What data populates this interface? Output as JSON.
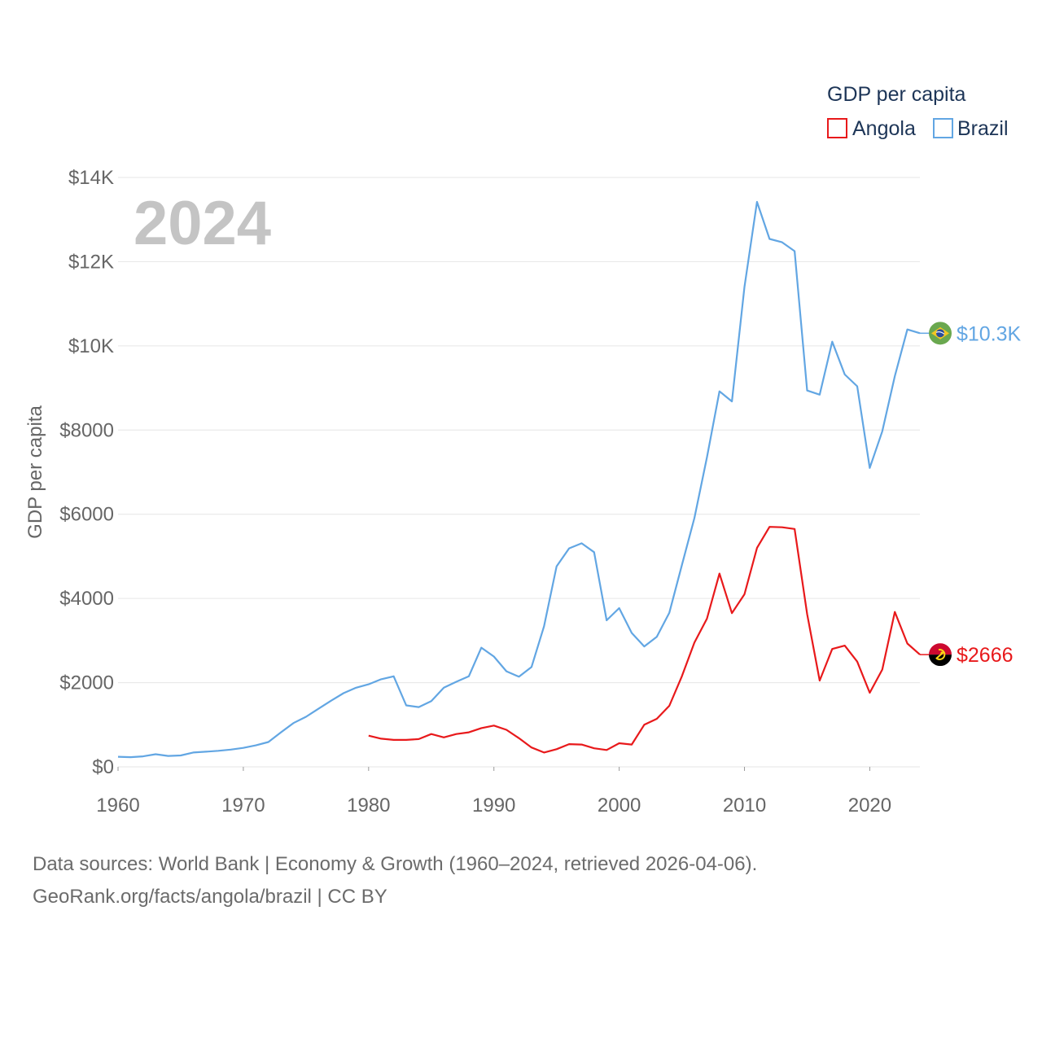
{
  "chart_data": {
    "type": "line",
    "title": "",
    "year_label": "2024",
    "xlabel": "",
    "ylabel": "GDP per capita",
    "xlim": [
      1960,
      2024
    ],
    "ylim": [
      0,
      14000
    ],
    "x_ticks": [
      1960,
      1970,
      1980,
      1990,
      2000,
      2010,
      2020
    ],
    "y_ticks": [
      {
        "value": 0,
        "label": "$0"
      },
      {
        "value": 2000,
        "label": "$2000"
      },
      {
        "value": 4000,
        "label": "$4000"
      },
      {
        "value": 6000,
        "label": "$6000"
      },
      {
        "value": 8000,
        "label": "$8000"
      },
      {
        "value": 10000,
        "label": "$10K"
      },
      {
        "value": 12000,
        "label": "$12K"
      },
      {
        "value": 14000,
        "label": "$14K"
      }
    ],
    "legend": {
      "title": "GDP per capita",
      "position": "top-right"
    },
    "series": [
      {
        "name": "Angola",
        "color": "#e8191b",
        "end_label": "$2666",
        "flag": "angola-flag-icon",
        "x": [
          1980,
          1981,
          1982,
          1983,
          1984,
          1985,
          1986,
          1987,
          1988,
          1989,
          1990,
          1991,
          1992,
          1993,
          1994,
          1995,
          1996,
          1997,
          1998,
          1999,
          2000,
          2001,
          2002,
          2003,
          2004,
          2005,
          2006,
          2007,
          2008,
          2009,
          2010,
          2011,
          2012,
          2013,
          2014,
          2015,
          2016,
          2017,
          2018,
          2019,
          2020,
          2021,
          2022,
          2023,
          2024
        ],
        "values": [
          740,
          670,
          640,
          640,
          660,
          780,
          700,
          780,
          820,
          920,
          980,
          880,
          680,
          460,
          340,
          420,
          540,
          530,
          440,
          400,
          560,
          530,
          1000,
          1140,
          1450,
          2150,
          2950,
          3520,
          4590,
          3650,
          4100,
          5200,
          5700,
          5690,
          5650,
          3630,
          2050,
          2800,
          2880,
          2500,
          1760,
          2310,
          3680,
          2930,
          2666
        ]
      },
      {
        "name": "Brazil",
        "color": "#62a6e3",
        "end_label": "$10.3K",
        "flag": "brazil-flag-icon",
        "x": [
          1960,
          1961,
          1962,
          1963,
          1964,
          1965,
          1966,
          1967,
          1968,
          1969,
          1970,
          1971,
          1972,
          1973,
          1974,
          1975,
          1976,
          1977,
          1978,
          1979,
          1980,
          1981,
          1982,
          1983,
          1984,
          1985,
          1986,
          1987,
          1988,
          1989,
          1990,
          1991,
          1992,
          1993,
          1994,
          1995,
          1996,
          1997,
          1998,
          1999,
          2000,
          2001,
          2002,
          2003,
          2004,
          2005,
          2006,
          2007,
          2008,
          2009,
          2010,
          2011,
          2012,
          2013,
          2014,
          2015,
          2016,
          2017,
          2018,
          2019,
          2020,
          2021,
          2022,
          2023,
          2024
        ],
        "values": [
          240,
          230,
          250,
          300,
          260,
          270,
          340,
          360,
          380,
          410,
          450,
          510,
          590,
          820,
          1040,
          1190,
          1380,
          1570,
          1750,
          1880,
          1960,
          2080,
          2150,
          1460,
          1420,
          1560,
          1880,
          2020,
          2150,
          2830,
          2620,
          2270,
          2140,
          2370,
          3340,
          4760,
          5190,
          5310,
          5100,
          3480,
          3770,
          3180,
          2860,
          3090,
          3660,
          4790,
          5910,
          7350,
          8920,
          8680,
          11400,
          13420,
          12540,
          12460,
          12250,
          8940,
          8840,
          10100,
          9320,
          9040,
          7100,
          7970,
          9280,
          10390,
          10300
        ]
      }
    ]
  },
  "footer": {
    "source_line1": "Data sources: World Bank | Economy & Growth (1960–2024, retrieved 2026-04-06).",
    "source_line2": "GeoRank.org/facts/angola/brazil | CC BY"
  }
}
